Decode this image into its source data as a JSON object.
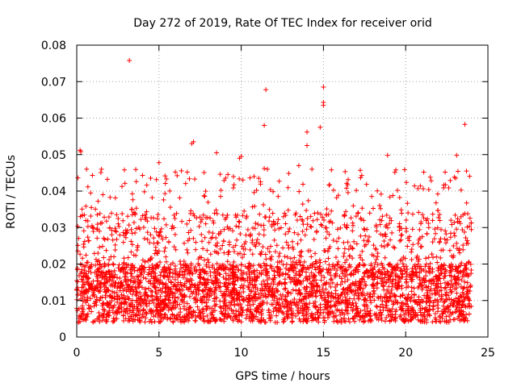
{
  "chart_data": {
    "type": "scatter",
    "title": "Day 272 of 2019, Rate Of TEC Index for receiver orid",
    "xlabel": "GPS time / hours",
    "ylabel": "ROTI / TECUs",
    "xlim": [
      0,
      25
    ],
    "ylim": [
      0,
      0.08
    ],
    "xticks": [
      0,
      5,
      10,
      15,
      20,
      25
    ],
    "yticks": [
      0,
      0.01,
      0.02,
      0.03,
      0.04,
      0.05,
      0.06,
      0.07,
      0.08
    ],
    "xtick_labels": [
      "0",
      "5",
      "10",
      "15",
      "20",
      "25"
    ],
    "ytick_labels": [
      "0",
      "0.01",
      "0.02",
      "0.03",
      "0.04",
      "0.05",
      "0.06",
      "0.07",
      "0.08"
    ],
    "grid": true,
    "marker": "+",
    "color": "#ff0000",
    "series": [
      {
        "name": "ROTI",
        "x_range": [
          0,
          24
        ],
        "typical_range": [
          0.004,
          0.02
        ],
        "notable_points": [
          {
            "x": 3.2,
            "y": 0.0758
          },
          {
            "x": 15.0,
            "y": 0.0685
          },
          {
            "x": 11.5,
            "y": 0.0678
          },
          {
            "x": 15.0,
            "y": 0.0643
          },
          {
            "x": 15.0,
            "y": 0.0635
          },
          {
            "x": 11.4,
            "y": 0.058
          },
          {
            "x": 23.6,
            "y": 0.0583
          },
          {
            "x": 14.8,
            "y": 0.0575
          },
          {
            "x": 14.0,
            "y": 0.0562
          },
          {
            "x": 7.1,
            "y": 0.0535
          },
          {
            "x": 7.0,
            "y": 0.053
          },
          {
            "x": 14.0,
            "y": 0.0525
          },
          {
            "x": 0.2,
            "y": 0.0512
          },
          {
            "x": 0.25,
            "y": 0.0508
          },
          {
            "x": 8.5,
            "y": 0.0505
          },
          {
            "x": 18.9,
            "y": 0.0498
          },
          {
            "x": 23.1,
            "y": 0.0498
          },
          {
            "x": 10.0,
            "y": 0.0495
          },
          {
            "x": 9.9,
            "y": 0.049
          },
          {
            "x": 5.0,
            "y": 0.0478
          },
          {
            "x": 13.5,
            "y": 0.047
          },
          {
            "x": 14.3,
            "y": 0.046
          },
          {
            "x": 0.6,
            "y": 0.046
          },
          {
            "x": 2.9,
            "y": 0.0458
          },
          {
            "x": 11.4,
            "y": 0.0462
          },
          {
            "x": 21.1,
            "y": 0.0452
          },
          {
            "x": 22.4,
            "y": 0.0452
          },
          {
            "x": 23.7,
            "y": 0.0455
          },
          {
            "x": 4.0,
            "y": 0.0443
          },
          {
            "x": 16.4,
            "y": 0.0408
          },
          {
            "x": 17.0,
            "y": 0.0402
          },
          {
            "x": 19.5,
            "y": 0.0402
          }
        ]
      }
    ]
  }
}
